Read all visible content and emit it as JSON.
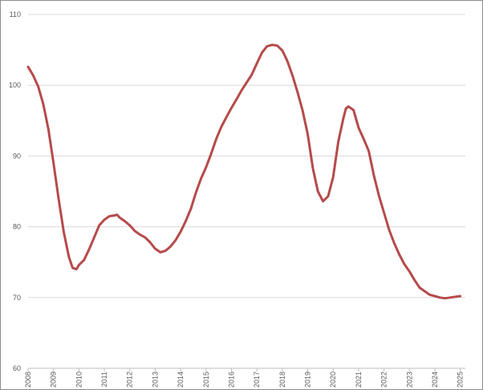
{
  "chart_data": {
    "type": "line",
    "title": "",
    "xlabel": "",
    "ylabel": "",
    "ylim": [
      60,
      110
    ],
    "xlim": [
      2008.0,
      2025.2
    ],
    "grid": true,
    "legend": "none",
    "yticks": [
      "60",
      "70",
      "80",
      "90",
      "100",
      "110"
    ],
    "xticks": [
      "2008",
      "2009",
      "2010",
      "2011",
      "2012",
      "2013",
      "2014",
      "2015",
      "2016",
      "2017",
      "2018",
      "2019",
      "2020",
      "2021",
      "2022",
      "2023",
      "2024",
      "2025"
    ],
    "series": [
      {
        "color": "#b64a4a",
        "x": [
          2008.0,
          2008.2,
          2008.4,
          2008.6,
          2008.8,
          2009.0,
          2009.2,
          2009.4,
          2009.6,
          2009.75,
          2009.9,
          2010.0,
          2010.2,
          2010.4,
          2010.6,
          2010.8,
          2011.0,
          2011.2,
          2011.4,
          2011.5,
          2011.6,
          2011.8,
          2012.0,
          2012.2,
          2012.4,
          2012.6,
          2012.8,
          2013.0,
          2013.2,
          2013.4,
          2013.6,
          2013.8,
          2014.0,
          2014.2,
          2014.4,
          2014.6,
          2014.8,
          2015.0,
          2015.2,
          2015.4,
          2015.6,
          2015.8,
          2016.0,
          2016.2,
          2016.4,
          2016.6,
          2016.8,
          2017.0,
          2017.2,
          2017.4,
          2017.6,
          2017.8,
          2018.0,
          2018.2,
          2018.4,
          2018.6,
          2018.8,
          2019.0,
          2019.2,
          2019.4,
          2019.6,
          2019.8,
          2020.0,
          2020.2,
          2020.4,
          2020.5,
          2020.6,
          2020.8,
          2021.0,
          2021.2,
          2021.4,
          2021.6,
          2021.8,
          2022.0,
          2022.2,
          2022.4,
          2022.6,
          2022.8,
          2023.0,
          2023.2,
          2023.4,
          2023.6,
          2023.8,
          2024.0,
          2024.2,
          2024.4,
          2024.6,
          2024.8,
          2025.0
        ],
        "values": [
          102.6,
          101.4,
          99.8,
          97.3,
          93.8,
          89.0,
          84.0,
          79.3,
          75.8,
          74.2,
          74.0,
          74.6,
          75.3,
          76.8,
          78.5,
          80.2,
          81.0,
          81.5,
          81.6,
          81.7,
          81.3,
          80.8,
          80.2,
          79.4,
          78.9,
          78.5,
          77.8,
          76.9,
          76.4,
          76.6,
          77.2,
          78.1,
          79.3,
          80.8,
          82.5,
          84.8,
          86.8,
          88.4,
          90.3,
          92.4,
          94.1,
          95.5,
          96.8,
          98.0,
          99.3,
          100.4,
          101.5,
          103.1,
          104.6,
          105.5,
          105.7,
          105.6,
          104.9,
          103.4,
          101.4,
          99.0,
          96.4,
          93.1,
          88.3,
          85.0,
          83.6,
          84.3,
          87.0,
          92.0,
          95.3,
          96.7,
          97.0,
          96.5,
          94.0,
          92.4,
          90.7,
          87.3,
          84.4,
          82.0,
          79.6,
          77.7,
          76.1,
          74.7,
          73.7,
          72.5,
          71.4,
          70.9,
          70.4,
          70.2,
          70.0,
          69.9,
          70.0,
          70.1,
          70.2
        ]
      }
    ]
  }
}
